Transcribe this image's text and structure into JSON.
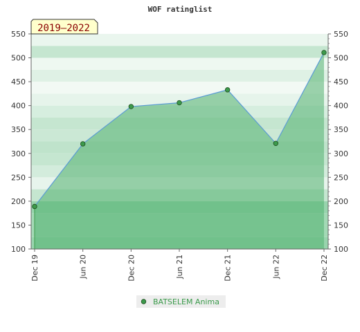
{
  "chart_data": {
    "type": "area",
    "title": "WOF ratinglist",
    "period_label": "2019–2022",
    "x": [
      "Dec 19",
      "Jun 20",
      "Dec 20",
      "Jun 21",
      "Dec 21",
      "Jun 22",
      "Dec 22"
    ],
    "series": [
      {
        "name": "BATSELEM Anima",
        "values": [
          189,
          320,
          398,
          406,
          433,
          321,
          511
        ]
      }
    ],
    "ylim": [
      100,
      550
    ],
    "yticks": [
      100,
      150,
      200,
      250,
      300,
      350,
      400,
      450,
      500,
      550
    ],
    "y_axis_sides": "left-and-right",
    "legend_position": "bottom-center",
    "grid": "horizontal bands",
    "colors": {
      "line": "#5b9bd5",
      "marker": "#3c9a4c",
      "fill": "#52b070",
      "legend_bg": "#ededed",
      "period_bg": "#ffffcc",
      "period_text": "#8b0000"
    }
  }
}
